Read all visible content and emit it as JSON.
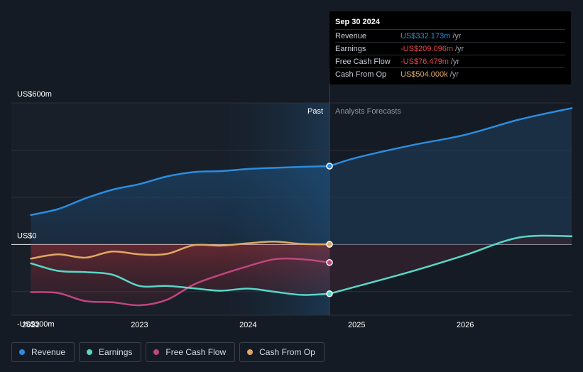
{
  "chart_data": {
    "type": "line",
    "x_ticks": [
      "2022",
      "2023",
      "2024",
      "2025",
      "2026"
    ],
    "y_ticks": [
      {
        "label": "US$600m",
        "value": 600
      },
      {
        "label": "US$0",
        "value": 0
      },
      {
        "label": "-US$300m",
        "value": -300
      }
    ],
    "ylim": [
      -300,
      600
    ],
    "gridlines": [
      600,
      400,
      200,
      0,
      -200
    ],
    "xlim": [
      2021.82,
      2026.98
    ],
    "forecast_start": 2024.75,
    "past_start": 2023.75,
    "past_label": "Past",
    "forecast_label": "Analysts Forecasts",
    "series": [
      {
        "name": "Revenue",
        "color": "#2b8ce0",
        "x": [
          2022.0,
          2022.25,
          2022.5,
          2022.75,
          2023.0,
          2023.25,
          2023.5,
          2023.75,
          2024.0,
          2024.25,
          2024.5,
          2024.75
        ],
        "values": [
          125,
          150,
          195,
          232,
          256,
          288,
          307,
          311,
          320,
          325,
          329,
          332.2
        ],
        "forecast_x": [
          2024.75,
          2025.0,
          2025.5,
          2026.0,
          2026.5,
          2026.98
        ],
        "forecast": [
          332.2,
          368,
          420,
          465,
          530,
          578
        ]
      },
      {
        "name": "Earnings",
        "color": "#58d7c8",
        "x": [
          2022.0,
          2022.25,
          2022.5,
          2022.75,
          2023.0,
          2023.25,
          2023.5,
          2023.75,
          2024.0,
          2024.25,
          2024.5,
          2024.75
        ],
        "values": [
          -80,
          -112,
          -117,
          -128,
          -176,
          -176,
          -186,
          -196,
          -187,
          -201,
          -214,
          -209.1
        ],
        "forecast_x": [
          2024.75,
          2025.0,
          2025.5,
          2026.0,
          2026.5,
          2026.98
        ],
        "forecast": [
          -209.1,
          -178,
          -115,
          -45,
          30,
          35
        ]
      },
      {
        "name": "Free Cash Flow",
        "color": "#c2457f",
        "x": [
          2022.0,
          2022.25,
          2022.5,
          2022.75,
          2023.0,
          2023.25,
          2023.5,
          2023.75,
          2024.0,
          2024.25,
          2024.5,
          2024.75
        ],
        "values": [
          -202,
          -206,
          -240,
          -245,
          -258,
          -235,
          -170,
          -128,
          -92,
          -62,
          -63,
          -76.5
        ]
      },
      {
        "name": "Cash From Op",
        "color": "#e0a862",
        "x": [
          2022.0,
          2022.25,
          2022.5,
          2022.75,
          2023.0,
          2023.25,
          2023.5,
          2023.75,
          2024.0,
          2024.25,
          2024.5,
          2024.75
        ],
        "values": [
          -60,
          -42,
          -56,
          -30,
          -42,
          -40,
          -3,
          -5,
          5,
          12,
          2,
          0.5
        ]
      }
    ]
  },
  "tooltip": {
    "date": "Sep 30 2024",
    "rows": [
      {
        "label": "Revenue",
        "value": "US$332.173m",
        "unit": "/yr",
        "color": "#2b8ce0"
      },
      {
        "label": "Earnings",
        "value": "-US$209.096m",
        "unit": "/yr",
        "color": "#e0484e"
      },
      {
        "label": "Free Cash Flow",
        "value": "-US$76.479m",
        "unit": "/yr",
        "color": "#e0484e"
      },
      {
        "label": "Cash From Op",
        "value": "US$504.000k",
        "unit": "/yr",
        "color": "#e0a862"
      }
    ]
  },
  "legend": [
    {
      "label": "Revenue",
      "color": "#2b8ce0"
    },
    {
      "label": "Earnings",
      "color": "#58d7c8"
    },
    {
      "label": "Free Cash Flow",
      "color": "#c2457f"
    },
    {
      "label": "Cash From Op",
      "color": "#e0a862"
    }
  ]
}
